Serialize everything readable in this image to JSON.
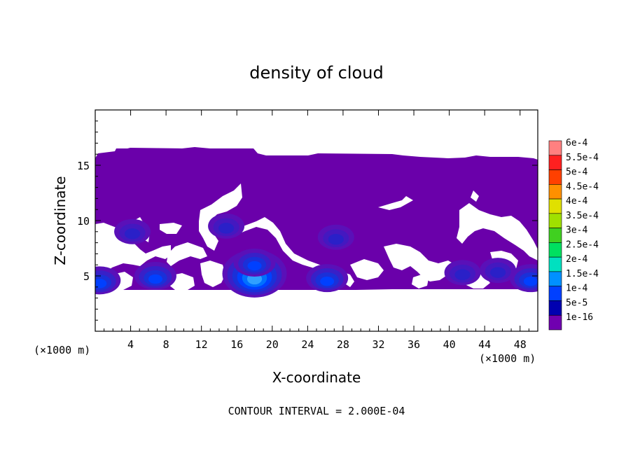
{
  "chart_data": {
    "type": "contour",
    "title": "density of cloud",
    "xlabel": "X-coordinate",
    "ylabel": "Z-coordinate",
    "x_unit_left": "(×1000 m)",
    "x_unit_right": "(×1000 m)",
    "xlim": [
      0,
      50
    ],
    "ylim": [
      0,
      20
    ],
    "x_ticks": [
      4,
      8,
      12,
      16,
      20,
      24,
      28,
      32,
      36,
      40,
      44,
      48
    ],
    "y_ticks": [
      5,
      10,
      15
    ],
    "footer": "CONTOUR INTERVAL = 2.000E-04",
    "colorbar": {
      "labels": [
        "6e-4",
        "5.5e-4",
        "5e-4",
        "4.5e-4",
        "4e-4",
        "3.5e-4",
        "3e-4",
        "2.5e-4",
        "2e-4",
        "1.5e-4",
        "1e-4",
        "5e-5",
        "1e-16"
      ],
      "colors": [
        "#ff8080",
        "#ff2020",
        "#ff4000",
        "#ff9000",
        "#e0e000",
        "#a0e000",
        "#40d020",
        "#00e060",
        "#00e0c0",
        "#0090ff",
        "#0040ff",
        "#0000b0",
        "#7000b0"
      ]
    },
    "cloud_base_color": "#6a00aa",
    "blobs": [
      {
        "x": 18,
        "z": 5.2,
        "level": "1.5e-4"
      },
      {
        "x": 18,
        "z": 6.2,
        "level": "1e-4"
      },
      {
        "x": 6.8,
        "z": 5.0,
        "level": "1e-4"
      },
      {
        "x": 26.2,
        "z": 4.8,
        "level": "1e-4"
      },
      {
        "x": 27.2,
        "z": 8.5,
        "level": "5e-5"
      },
      {
        "x": 49.2,
        "z": 4.8,
        "level": "1e-4"
      },
      {
        "x": 0.5,
        "z": 4.6,
        "level": "1e-4"
      },
      {
        "x": 41.5,
        "z": 5.3,
        "level": "5e-5"
      },
      {
        "x": 14.8,
        "z": 9.5,
        "level": "5e-5"
      },
      {
        "x": 4.2,
        "z": 9.0,
        "level": "5e-5"
      },
      {
        "x": 45.5,
        "z": 5.5,
        "level": "5e-5"
      }
    ]
  }
}
